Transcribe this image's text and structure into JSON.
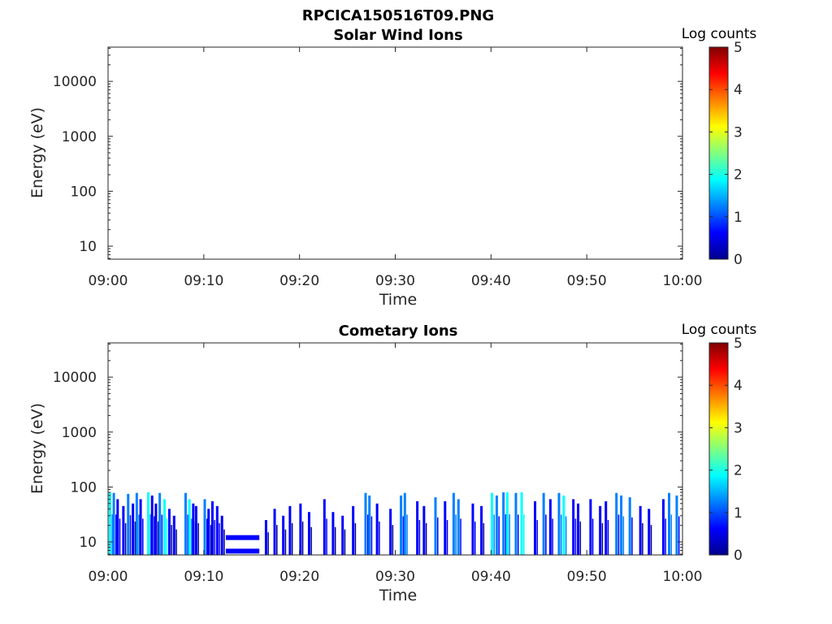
{
  "figure_title": "RPCICA150516T09.PNG",
  "colormap": [
    "#00008f",
    "#0000ff",
    "#0080ff",
    "#00ffff",
    "#80ff80",
    "#ffff00",
    "#ff8000",
    "#ff0000",
    "#800000"
  ],
  "chart_data": [
    {
      "type": "heatmap",
      "title": "Solar Wind Ions",
      "xlabel": "Time",
      "ylabel": "Energy (eV)",
      "x_ticks": [
        "09:00",
        "09:10",
        "09:20",
        "09:30",
        "09:40",
        "09:50",
        "10:00"
      ],
      "y_scale": "log",
      "y_ticks": [
        "10",
        "100",
        "1000",
        "10000"
      ],
      "colorbar": {
        "label": "Log counts",
        "ticks": [
          "0",
          "1",
          "2",
          "3",
          "4",
          "5"
        ],
        "range": [
          0,
          5
        ]
      },
      "bursts": []
    },
    {
      "type": "heatmap",
      "title": "Cometary Ions",
      "xlabel": "Time",
      "ylabel": "Energy (eV)",
      "x_ticks": [
        "09:00",
        "09:10",
        "09:20",
        "09:30",
        "09:40",
        "09:50",
        "10:00"
      ],
      "y_scale": "log",
      "y_ticks": [
        "10",
        "100",
        "1000",
        "10000"
      ],
      "colorbar": {
        "label": "Log counts",
        "ticks": [
          "0",
          "1",
          "2",
          "3",
          "4",
          "5"
        ],
        "range": [
          0,
          5
        ]
      },
      "bursts": [
        {
          "t": 0.2,
          "emax": 80,
          "lvl": 1.8
        },
        {
          "t": 0.6,
          "emax": 78,
          "lvl": 1.2
        },
        {
          "t": 1.0,
          "emax": 60,
          "lvl": 0.8
        },
        {
          "t": 1.6,
          "emax": 45,
          "lvl": 0.6
        },
        {
          "t": 2.1,
          "emax": 75,
          "lvl": 1.0
        },
        {
          "t": 2.6,
          "emax": 50,
          "lvl": 0.7
        },
        {
          "t": 3.0,
          "emax": 78,
          "lvl": 1.4
        },
        {
          "t": 3.4,
          "emax": 60,
          "lvl": 0.8
        },
        {
          "t": 4.2,
          "emax": 80,
          "lvl": 1.6
        },
        {
          "t": 4.6,
          "emax": 70,
          "lvl": 0.9
        },
        {
          "t": 5.0,
          "emax": 50,
          "lvl": 0.7
        },
        {
          "t": 5.4,
          "emax": 78,
          "lvl": 1.3
        },
        {
          "t": 5.9,
          "emax": 60,
          "lvl": 2.0
        },
        {
          "t": 6.4,
          "emax": 40,
          "lvl": 0.6
        },
        {
          "t": 6.9,
          "emax": 30,
          "lvl": 0.5
        },
        {
          "t": 8.1,
          "emax": 78,
          "lvl": 1.0
        },
        {
          "t": 8.5,
          "emax": 60,
          "lvl": 1.8
        },
        {
          "t": 8.9,
          "emax": 50,
          "lvl": 0.8
        },
        {
          "t": 9.2,
          "emax": 45,
          "lvl": 0.7
        },
        {
          "t": 10.1,
          "emax": 60,
          "lvl": 1.1
        },
        {
          "t": 10.5,
          "emax": 40,
          "lvl": 0.6
        },
        {
          "t": 10.9,
          "emax": 55,
          "lvl": 0.8
        },
        {
          "t": 11.4,
          "emax": 45,
          "lvl": 0.9
        },
        {
          "t": 11.9,
          "emax": 30,
          "lvl": 0.5
        },
        {
          "t": 16.5,
          "emax": 25,
          "lvl": 0.5
        },
        {
          "t": 17.4,
          "emax": 40,
          "lvl": 0.6
        },
        {
          "t": 18.3,
          "emax": 30,
          "lvl": 0.5
        },
        {
          "t": 19.0,
          "emax": 45,
          "lvl": 0.6
        },
        {
          "t": 20.1,
          "emax": 50,
          "lvl": 0.7
        },
        {
          "t": 21.0,
          "emax": 35,
          "lvl": 0.5
        },
        {
          "t": 22.6,
          "emax": 60,
          "lvl": 0.8
        },
        {
          "t": 23.5,
          "emax": 35,
          "lvl": 0.6
        },
        {
          "t": 24.5,
          "emax": 30,
          "lvl": 0.5
        },
        {
          "t": 25.6,
          "emax": 45,
          "lvl": 0.6
        },
        {
          "t": 26.9,
          "emax": 78,
          "lvl": 1.2
        },
        {
          "t": 27.3,
          "emax": 70,
          "lvl": 1.0
        },
        {
          "t": 28.1,
          "emax": 50,
          "lvl": 0.8
        },
        {
          "t": 29.5,
          "emax": 40,
          "lvl": 0.6
        },
        {
          "t": 30.6,
          "emax": 70,
          "lvl": 1.0
        },
        {
          "t": 31.0,
          "emax": 78,
          "lvl": 1.5
        },
        {
          "t": 32.3,
          "emax": 55,
          "lvl": 0.8
        },
        {
          "t": 33.0,
          "emax": 45,
          "lvl": 0.7
        },
        {
          "t": 34.2,
          "emax": 65,
          "lvl": 1.0
        },
        {
          "t": 35.2,
          "emax": 55,
          "lvl": 0.8
        },
        {
          "t": 36.1,
          "emax": 78,
          "lvl": 1.4
        },
        {
          "t": 36.6,
          "emax": 60,
          "lvl": 1.0
        },
        {
          "t": 38.1,
          "emax": 50,
          "lvl": 0.8
        },
        {
          "t": 39.0,
          "emax": 45,
          "lvl": 0.7
        },
        {
          "t": 40.1,
          "emax": 78,
          "lvl": 1.8
        },
        {
          "t": 40.6,
          "emax": 70,
          "lvl": 1.3
        },
        {
          "t": 41.3,
          "emax": 80,
          "lvl": 1.0
        },
        {
          "t": 41.7,
          "emax": 80,
          "lvl": 1.9
        },
        {
          "t": 42.6,
          "emax": 78,
          "lvl": 1.2
        },
        {
          "t": 43.2,
          "emax": 80,
          "lvl": 2.1
        },
        {
          "t": 44.6,
          "emax": 55,
          "lvl": 0.8
        },
        {
          "t": 45.5,
          "emax": 78,
          "lvl": 1.1
        },
        {
          "t": 46.2,
          "emax": 60,
          "lvl": 0.9
        },
        {
          "t": 47.1,
          "emax": 78,
          "lvl": 1.5
        },
        {
          "t": 47.6,
          "emax": 70,
          "lvl": 1.7
        },
        {
          "t": 48.6,
          "emax": 60,
          "lvl": 0.9
        },
        {
          "t": 49.1,
          "emax": 50,
          "lvl": 0.7
        },
        {
          "t": 50.4,
          "emax": 60,
          "lvl": 0.8
        },
        {
          "t": 51.4,
          "emax": 45,
          "lvl": 0.6
        },
        {
          "t": 52.0,
          "emax": 55,
          "lvl": 0.8
        },
        {
          "t": 53.1,
          "emax": 78,
          "lvl": 1.1
        },
        {
          "t": 53.6,
          "emax": 70,
          "lvl": 1.4
        },
        {
          "t": 54.5,
          "emax": 65,
          "lvl": 1.2
        },
        {
          "t": 55.6,
          "emax": 45,
          "lvl": 0.6
        },
        {
          "t": 56.5,
          "emax": 40,
          "lvl": 0.6
        },
        {
          "t": 58.0,
          "emax": 60,
          "lvl": 0.9
        },
        {
          "t": 58.6,
          "emax": 78,
          "lvl": 1.4
        },
        {
          "t": 59.4,
          "emax": 70,
          "lvl": 1.2
        }
      ],
      "bands": [
        {
          "t0": 12.3,
          "t1": 15.8,
          "e": 12,
          "lvl": 0.9
        },
        {
          "t0": 12.3,
          "t1": 15.8,
          "e": 6.8,
          "lvl": 0.9
        }
      ]
    }
  ]
}
